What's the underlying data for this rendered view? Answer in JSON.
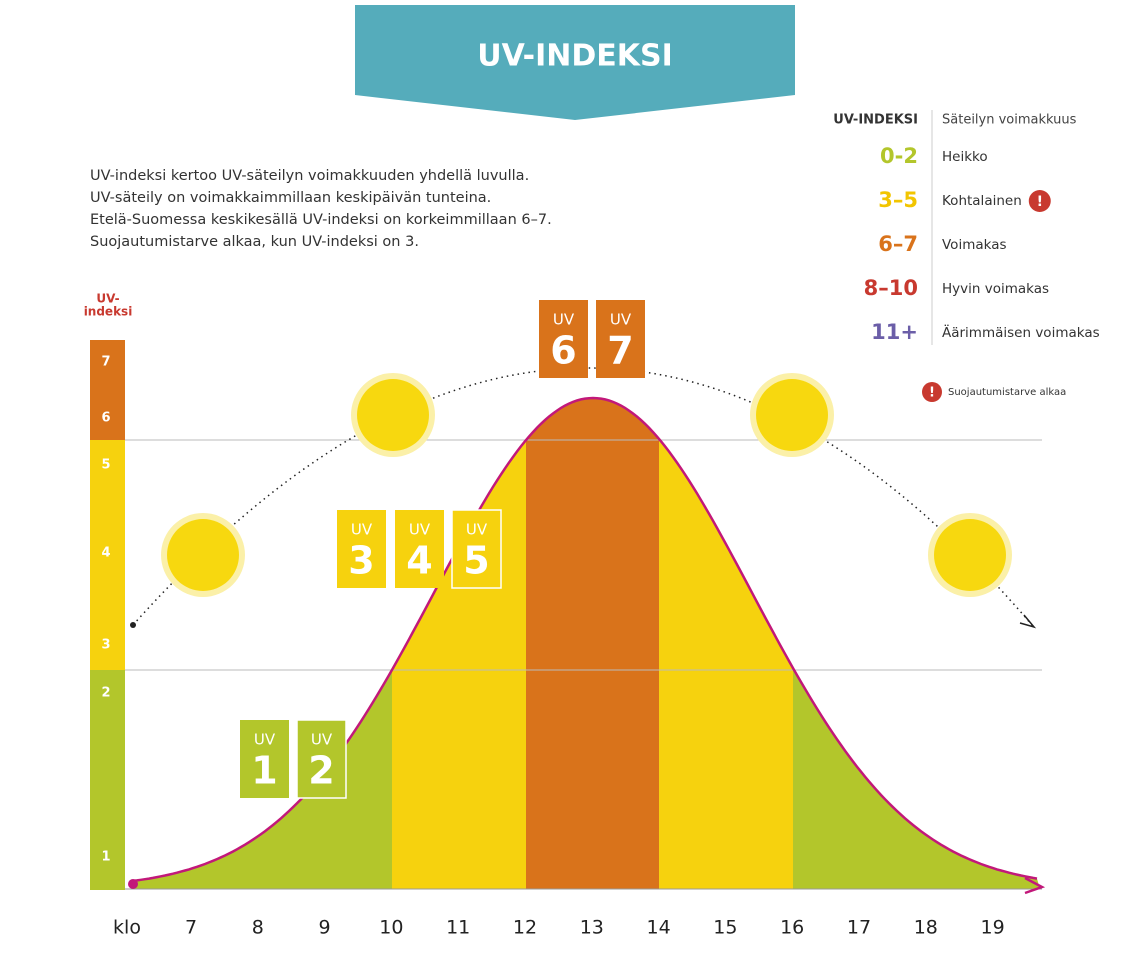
{
  "title": "UV-INDEKSI",
  "description": [
    "UV-indeksi kertoo UV-säteilyn voimakkuuden yhdellä luvulla.",
    "UV-säteily on voimakkaimmillaan keskipäivän tunteina.",
    "Etelä-Suomessa keskikesällä UV-indeksi on korkeimmillaan 6–7.",
    "Suojautumistarve alkaa, kun UV-indeksi on 3."
  ],
  "legend": {
    "header_index": "UV-INDEKSI",
    "header_intensity": "Säteilyn voimakkuus",
    "rows": [
      {
        "range": "0-2",
        "label": "Heikko",
        "color": "#b3c62b"
      },
      {
        "range": "3–5",
        "label": "Kohtalainen",
        "color": "#f2c500"
      },
      {
        "range": "6–7",
        "label": "Voimakas",
        "color": "#d9731b"
      },
      {
        "range": "8–10",
        "label": "Hyvin voimakas",
        "color": "#c8392f"
      },
      {
        "range": "11+",
        "label": "Äärimmäisen voimakas",
        "color": "#6b5ea8"
      }
    ],
    "warning_icon": "!",
    "note": "Suojautumistarve alkaa"
  },
  "axis_label": [
    "UV-",
    "indeksi"
  ],
  "bar_numbers": [
    "7",
    "6",
    "5",
    "4",
    "3",
    "2",
    "1"
  ],
  "hours": [
    "klo",
    "7",
    "8",
    "9",
    "10",
    "11",
    "12",
    "13",
    "14",
    "15",
    "16",
    "17",
    "18",
    "19"
  ],
  "boxes": [
    {
      "unit": "UV",
      "number": "1"
    },
    {
      "unit": "UV",
      "number": "2"
    },
    {
      "unit": "UV",
      "number": "3"
    },
    {
      "unit": "UV",
      "number": "4"
    },
    {
      "unit": "UV",
      "number": "5"
    },
    {
      "unit": "UV",
      "number": "6"
    },
    {
      "unit": "UV",
      "number": "7"
    }
  ]
}
